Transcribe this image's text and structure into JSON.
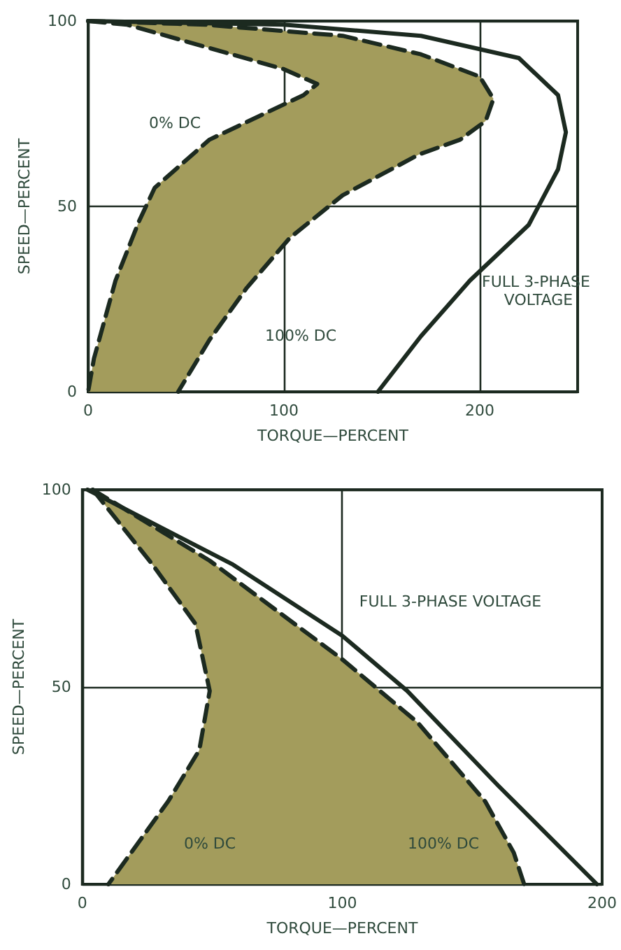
{
  "chart_data": [
    {
      "type": "line",
      "xlabel": "TORQUE—PERCENT",
      "ylabel": "SPEED—PERCENT",
      "xlim": [
        0,
        250
      ],
      "xticks": [
        0,
        100,
        200
      ],
      "ylim": [
        0,
        100
      ],
      "yticks": [
        0,
        50,
        100
      ],
      "grid": true,
      "marker": "none",
      "series": [
        {
          "name": "0% DC",
          "color": "#1c2a20",
          "line_style": "dashed",
          "x": [
            0,
            20,
            60,
            100,
            117,
            110,
            98,
            62,
            34,
            26,
            14,
            3,
            0
          ],
          "values": [
            100,
            99,
            93,
            87,
            83,
            80,
            77,
            68,
            55,
            46,
            30,
            9,
            0
          ]
        },
        {
          "name": "100% DC",
          "color": "#1c2a20",
          "line_style": "dashed",
          "x": [
            0,
            60,
            130,
            170,
            200,
            207,
            203,
            190,
            169,
            130,
            103,
            81,
            62,
            46
          ],
          "values": [
            100,
            99,
            96,
            91,
            85,
            79,
            73,
            68,
            64,
            53,
            41.5,
            28,
            14,
            0
          ]
        },
        {
          "name": "FULL 3-PHASE VOLTAGE",
          "color": "#1c2a20",
          "line_style": "solid",
          "x": [
            0,
            100,
            170,
            220,
            240,
            244,
            240,
            225,
            195,
            170,
            148
          ],
          "values": [
            100,
            99,
            96,
            90,
            80,
            70,
            60,
            45,
            30,
            15,
            0
          ]
        }
      ]
    },
    {
      "type": "line",
      "xlabel": "TORQUE—PERCENT",
      "ylabel": "SPEED—PERCENT",
      "xlim": [
        0,
        200
      ],
      "xticks": [
        0,
        100,
        200
      ],
      "ylim": [
        0,
        100
      ],
      "yticks": [
        0,
        50,
        100
      ],
      "grid": true,
      "marker": "none",
      "series": [
        {
          "name": "0% DC",
          "color": "#1c2a20",
          "line_style": "dashed",
          "x": [
            4,
            27,
            43.5,
            49,
            45,
            33,
            10
          ],
          "values": [
            100,
            81,
            66,
            49,
            34,
            21,
            0
          ]
        },
        {
          "name": "100% DC",
          "color": "#1c2a20",
          "line_style": "dashed",
          "x": [
            4,
            49,
            100,
            129,
            155,
            166,
            170
          ],
          "values": [
            100,
            82,
            57,
            41,
            21,
            8,
            0
          ]
        },
        {
          "name": "FULL 3-PHASE VOLTAGE",
          "color": "#1c2a20",
          "line_style": "solid",
          "x": [
            2,
            58,
            100,
            125,
            160,
            198
          ],
          "values": [
            100,
            81,
            63,
            49,
            25,
            0
          ]
        }
      ]
    }
  ]
}
